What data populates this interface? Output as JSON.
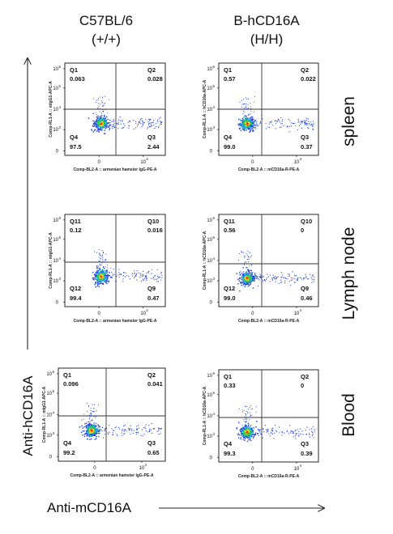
{
  "columns": [
    {
      "title_line1": "C57BL/6",
      "title_line2": "(+/+)"
    },
    {
      "title_line1": "B-hCD16A",
      "title_line2": "(H/H)"
    }
  ],
  "rows": [
    {
      "label": "spleen"
    },
    {
      "label": "Lymph node"
    },
    {
      "label": "Blood"
    }
  ],
  "axes": {
    "global_y_label": "Anti-hCD16A",
    "global_x_label": "Anti-mCD16A"
  },
  "chart_data": [
    {
      "type": "scatter",
      "row": 0,
      "col": 0,
      "xlabel": "Comp-BL2-A :: armenian hamster IgG-PE-A",
      "ylabel": "Comp-RL1-A :: mIgG1-APC-A",
      "quadrants": [
        {
          "name": "Q1",
          "value": "0.063"
        },
        {
          "name": "Q2",
          "value": "0.028"
        },
        {
          "name": "Q3",
          "value": "2.44"
        },
        {
          "name": "Q4",
          "value": "97.5"
        }
      ]
    },
    {
      "type": "scatter",
      "row": 0,
      "col": 1,
      "xlabel": "Comp-BL2-A :: mCD16a-R-PE-A",
      "ylabel": "Comp-RL1-A :: hCD16a-APC-A",
      "quadrants": [
        {
          "name": "Q1",
          "value": "0.57"
        },
        {
          "name": "Q2",
          "value": "0.022"
        },
        {
          "name": "Q3",
          "value": "0.37"
        },
        {
          "name": "Q4",
          "value": "99.0"
        }
      ]
    },
    {
      "type": "scatter",
      "row": 1,
      "col": 0,
      "xlabel": "Comp-BL2-A :: armenian hamster IgG-PE-A",
      "ylabel": "Comp-RL1-A :: mIgG1-APC-A",
      "quadrants": [
        {
          "name": "Q11",
          "value": "0.12"
        },
        {
          "name": "Q10",
          "value": "0.016"
        },
        {
          "name": "Q9",
          "value": "0.47"
        },
        {
          "name": "Q12",
          "value": "99.4"
        }
      ]
    },
    {
      "type": "scatter",
      "row": 1,
      "col": 1,
      "xlabel": "Comp-BL2-A :: mCD16a-R-PE-A",
      "ylabel": "Comp-RL1-A :: hCD16a-APC-A",
      "quadrants": [
        {
          "name": "Q11",
          "value": "0.56"
        },
        {
          "name": "Q10",
          "value": "0"
        },
        {
          "name": "Q9",
          "value": "0.46"
        },
        {
          "name": "Q12",
          "value": "99.0"
        }
      ]
    },
    {
      "type": "scatter",
      "row": 2,
      "col": 0,
      "xlabel": "Comp-BL2-A :: armenian hamster IgG-PE-A",
      "ylabel": "Comp-RL1-A :: mIgG1-APC-A",
      "quadrants": [
        {
          "name": "Q1",
          "value": "0.096"
        },
        {
          "name": "Q2",
          "value": "0.041"
        },
        {
          "name": "Q3",
          "value": "0.65"
        },
        {
          "name": "Q4",
          "value": "99.2"
        }
      ]
    },
    {
      "type": "scatter",
      "row": 2,
      "col": 1,
      "xlabel": "Comp-BL2-A :: mCD16a-R-PE-A",
      "ylabel": "Comp-RL1-A :: hCD16a-APC-A",
      "quadrants": [
        {
          "name": "Q1",
          "value": "0.33"
        },
        {
          "name": "Q2",
          "value": "0"
        },
        {
          "name": "Q3",
          "value": "0.39"
        },
        {
          "name": "Q4",
          "value": "99.3"
        }
      ]
    }
  ],
  "tick_labels": {
    "y": [
      {
        "base": "10",
        "exp": "6"
      },
      {
        "base": "10",
        "exp": "5"
      },
      {
        "base": "10",
        "exp": "4"
      },
      {
        "base": "10",
        "exp": "3"
      },
      {
        "base": "0",
        "exp": ""
      }
    ],
    "x": [
      {
        "base": "0",
        "exp": ""
      },
      {
        "base": "10",
        "exp": "4"
      }
    ]
  },
  "colors": {
    "axis": "#111111",
    "gate": "#333333",
    "dot_blue": "#1f3fd6",
    "dot_cyan": "#25b8d8",
    "dot_green": "#2fc94a",
    "dot_yellow": "#f2e21b",
    "dot_red": "#e8401f"
  }
}
